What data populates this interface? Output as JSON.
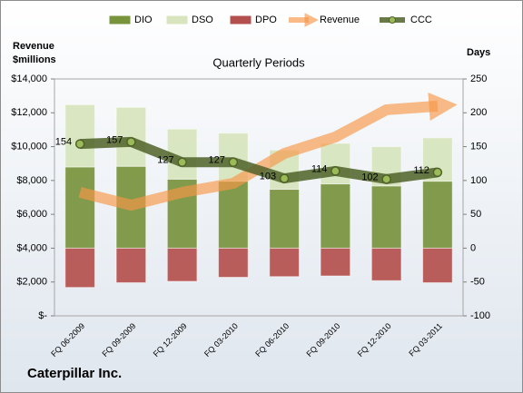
{
  "chart_data": {
    "type": "bar",
    "subtitle": "Quarterly Periods",
    "footer": "Caterpillar Inc.",
    "y_label": [
      "Revenue",
      "$millions"
    ],
    "y2_label": "Days",
    "categories": [
      "FQ 06-2009",
      "FQ 09-2009",
      "FQ 12-2009",
      "FQ 03-2010",
      "FQ 06-2010",
      "FQ 09-2010",
      "FQ 12-2010",
      "FQ 03-2011"
    ],
    "series": [
      {
        "name": "DIO",
        "type": "bar",
        "axis": "y2",
        "color": "#77933c",
        "values": [
          120,
          121,
          102,
          99,
          87,
          95,
          92,
          99
        ]
      },
      {
        "name": "DSO",
        "type": "bar",
        "axis": "y2",
        "color": "#d7e4bd",
        "values": [
          92,
          87,
          74,
          71,
          58,
          60,
          58,
          64
        ]
      },
      {
        "name": "DPO",
        "type": "bar",
        "axis": "y2",
        "color": "#b3504d",
        "values": [
          -58,
          -51,
          -49,
          -43,
          -42,
          -41,
          -48,
          -51
        ]
      },
      {
        "name": "Revenue",
        "type": "arrow",
        "axis": "y",
        "color": "#f79646",
        "values": [
          7300,
          6540,
          7300,
          7830,
          9600,
          10570,
          12180,
          12400
        ]
      },
      {
        "name": "CCC",
        "type": "line",
        "axis": "y2",
        "color": "#4f6228",
        "values": [
          154,
          157,
          127,
          127,
          103,
          114,
          102,
          112
        ]
      }
    ],
    "ylim": [
      0,
      14000
    ],
    "yticks": [
      {
        "value": 0,
        "label": "$-"
      },
      {
        "value": 2000,
        "label": "$2,000"
      },
      {
        "value": 4000,
        "label": "$4,000"
      },
      {
        "value": 6000,
        "label": "$6,000"
      },
      {
        "value": 8000,
        "label": "$8,000"
      },
      {
        "value": 10000,
        "label": "$10,000"
      },
      {
        "value": 12000,
        "label": "$12,000"
      },
      {
        "value": 14000,
        "label": "$14,000"
      }
    ],
    "y2lim": [
      -100,
      250
    ],
    "y2ticks": [
      -100,
      -50,
      0,
      50,
      100,
      150,
      200,
      250
    ],
    "stacked": true,
    "grid": false
  }
}
